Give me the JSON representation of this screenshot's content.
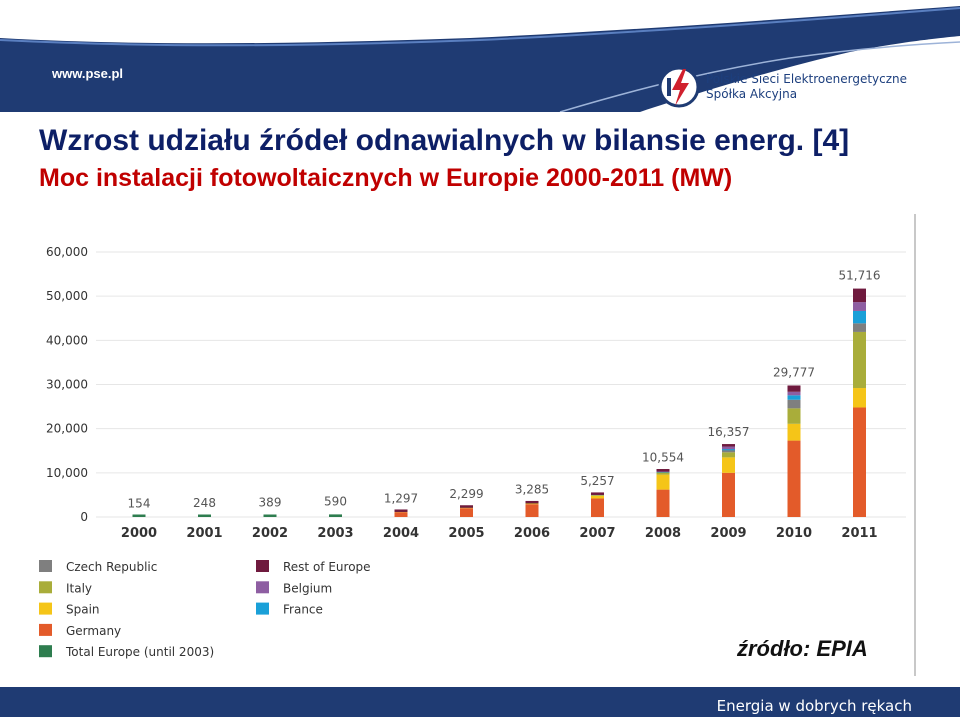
{
  "slide": {
    "site_url": "www.pse.pl",
    "company_line1": "Polskie Sieci Elektroenergetyczne",
    "company_line2": "Spółka Akcyjna",
    "title": "Wzrost udziału źródeł odnawialnych w bilansie energ. [4]",
    "subtitle": "Moc instalacji fotowoltaicznych w Europie 2000-2011 (MW)",
    "source": "źródło: EPIA",
    "slogan": "Energia w dobrych rękach"
  },
  "colors": {
    "navy": "#1f3b73",
    "title_blue": "#0d1f66",
    "subtitle_red": "#c00000"
  },
  "chart_data": {
    "type": "bar",
    "stacked": true,
    "categories": [
      "2000",
      "2001",
      "2002",
      "2003",
      "2004",
      "2005",
      "2006",
      "2007",
      "2008",
      "2009",
      "2010",
      "2011"
    ],
    "ylim": [
      0,
      60000
    ],
    "yticks": [
      0,
      10000,
      20000,
      30000,
      40000,
      50000,
      60000
    ],
    "ytick_labels": [
      "0",
      "10,000",
      "20,000",
      "30,000",
      "40,000",
      "50,000",
      "60,000"
    ],
    "grid": true,
    "legend_position": "bottom-left",
    "totals": [
      154,
      248,
      389,
      590,
      1297,
      2299,
      3285,
      5257,
      10554,
      16357,
      29777,
      51716
    ],
    "total_labels": [
      "154",
      "248",
      "389",
      "590",
      "1,297",
      "2,299",
      "3,285",
      "5,257",
      "10,554",
      "16,357",
      "29,777",
      "51,716"
    ],
    "series": [
      {
        "name": "Total Europe (until 2003)",
        "color": "#2e7d4f",
        "values": [
          154,
          248,
          389,
          590,
          0,
          0,
          0,
          0,
          0,
          0,
          0,
          0
        ]
      },
      {
        "name": "Germany",
        "color": "#e35b2a",
        "values": [
          0,
          0,
          0,
          0,
          1100,
          2000,
          2900,
          4200,
          6200,
          10000,
          17300,
          24800
        ]
      },
      {
        "name": "Spain",
        "color": "#f5c518",
        "values": [
          0,
          0,
          0,
          0,
          20,
          50,
          120,
          630,
          3400,
          3500,
          3800,
          4400
        ]
      },
      {
        "name": "Italy",
        "color": "#a9ad3a",
        "values": [
          0,
          0,
          0,
          0,
          20,
          40,
          50,
          120,
          450,
          1150,
          3500,
          12700
        ]
      },
      {
        "name": "Czech Republic",
        "color": "#7f7f7f",
        "values": [
          0,
          0,
          0,
          0,
          0,
          0,
          0,
          0,
          50,
          450,
          1950,
          1950
        ]
      },
      {
        "name": "France",
        "color": "#1aa0d8",
        "values": [
          0,
          0,
          0,
          0,
          0,
          0,
          0,
          30,
          100,
          250,
          1000,
          2800
        ]
      },
      {
        "name": "Belgium",
        "color": "#8e5ea2",
        "values": [
          0,
          0,
          0,
          0,
          0,
          0,
          0,
          20,
          100,
          600,
          800,
          2000
        ]
      },
      {
        "name": "Rest of Europe",
        "color": "#6f1a3e",
        "values": [
          0,
          0,
          0,
          0,
          157,
          209,
          215,
          257,
          254,
          407,
          1427,
          3066
        ]
      }
    ],
    "legend_left": [
      "Czech Republic",
      "Italy",
      "Spain",
      "Germany",
      "Total Europe (until 2003)"
    ],
    "legend_right": [
      "Rest of Europe",
      "Belgium",
      "France"
    ]
  }
}
